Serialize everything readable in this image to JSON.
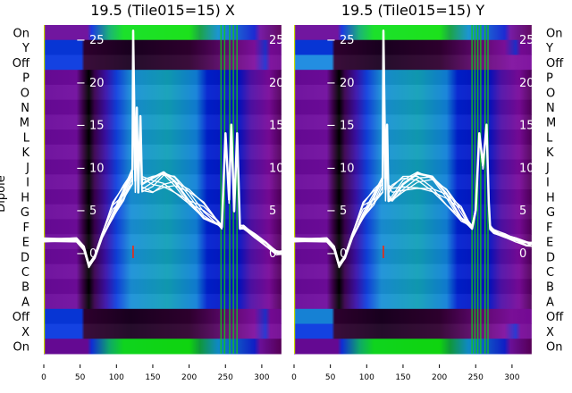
{
  "chart_data": {
    "type": "heatmap",
    "ylabel": "Dipole",
    "row_labels_top_to_bottom": [
      "On",
      "Y",
      "Off",
      "P",
      "O",
      "N",
      "M",
      "L",
      "K",
      "J",
      "I",
      "H",
      "G",
      "F",
      "E",
      "D",
      "C",
      "B",
      "A",
      "Off",
      "X",
      "On"
    ],
    "x_ticks": [
      "0",
      "50",
      "100",
      "150",
      "200",
      "250",
      "300"
    ],
    "xlim": [
      0,
      327
    ],
    "inner_y_ticks": [
      "0",
      "5",
      "10",
      "15",
      "20",
      "25"
    ],
    "inner_ylim": [
      -2.4,
      26.6
    ],
    "panels": [
      {
        "title": "19.5 (Tile015=15) X",
        "green_columns": [
          243,
          248,
          255,
          260,
          265
        ],
        "overlay_series": {
          "name": "trace",
          "x": [
            0,
            45,
            55,
            62,
            70,
            80,
            95,
            110,
            122,
            123,
            126,
            128,
            130,
            133,
            135,
            150,
            165,
            180,
            200,
            220,
            240,
            245,
            250,
            255,
            258,
            262,
            266,
            270,
            275,
            290,
            305,
            320,
            327
          ],
          "y": [
            1.5,
            1.5,
            0.5,
            -1.5,
            -0.5,
            2,
            5,
            7,
            9,
            26,
            8,
            17,
            8,
            16,
            8,
            8,
            8.5,
            8,
            6.5,
            5,
            3.5,
            3,
            14,
            6,
            15,
            5,
            14,
            3,
            3,
            2,
            1,
            0,
            0
          ]
        }
      },
      {
        "title": "19.5 (Tile015=15) Y",
        "green_columns": [
          244,
          248,
          252,
          256,
          262,
          266
        ],
        "overlay_series": {
          "name": "trace",
          "x": [
            0,
            45,
            55,
            62,
            70,
            80,
            95,
            110,
            122,
            123,
            126,
            128,
            130,
            135,
            150,
            170,
            190,
            210,
            230,
            240,
            245,
            250,
            255,
            260,
            265,
            268,
            270,
            275,
            290,
            305,
            320,
            327
          ],
          "y": [
            1.5,
            1.5,
            0.5,
            -1.5,
            -0.5,
            2,
            5,
            6.5,
            8,
            26,
            7,
            15,
            7,
            7,
            8,
            8.5,
            8,
            6.5,
            4.5,
            3.5,
            3,
            5,
            14,
            10,
            15,
            6,
            3,
            2.5,
            2,
            1.5,
            1,
            1
          ]
        }
      }
    ]
  }
}
